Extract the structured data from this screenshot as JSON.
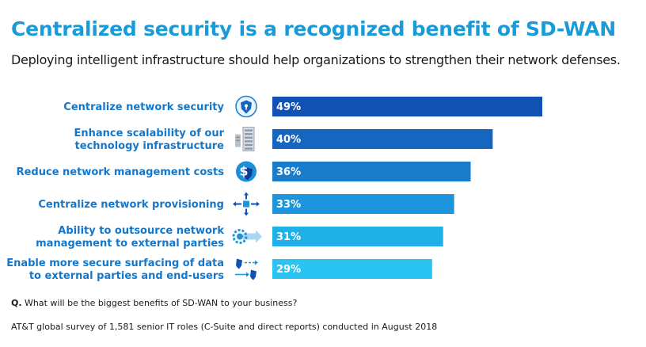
{
  "header": {
    "title": "Centralized security is a recognized benefit of SD-WAN",
    "subtitle": "Deploying intelligent infrastructure should help organizations to strengthen their network defenses."
  },
  "footer": {
    "question_prefix": "Q.",
    "question_text": " What will be the biggest benefits of SD-WAN to your business?",
    "source": "AT&T global survey of 1,581 senior IT roles (C-Suite and direct reports) conducted in August 2018"
  },
  "colors": {
    "title": "#1a9bd7",
    "label": "#1477c9",
    "bars": [
      "#1251b4",
      "#1665be",
      "#1a7dcc",
      "#1c95dc",
      "#1fb0e8",
      "#2ac4f2"
    ]
  },
  "icons": [
    "shield-icon",
    "server-rack-icon",
    "dollar-shield-icon",
    "network-arrows-icon",
    "gear-arrow-icon",
    "secure-transfer-icon"
  ],
  "chart_data": {
    "type": "bar",
    "orientation": "horizontal",
    "categories": [
      [
        "Centralize network security"
      ],
      [
        "Enhance scalability of our",
        "technology infrastructure"
      ],
      [
        "Reduce network management costs"
      ],
      [
        "Centralize network provisioning"
      ],
      [
        "Ability to outsource network",
        "management to external parties"
      ],
      [
        "Enable more secure surfacing of data",
        "to external parties and end-users"
      ]
    ],
    "values": [
      49,
      40,
      36,
      33,
      31,
      29
    ],
    "value_labels": [
      "49%",
      "40%",
      "36%",
      "33%",
      "31%",
      "29%"
    ],
    "xlim": [
      0,
      55
    ]
  }
}
